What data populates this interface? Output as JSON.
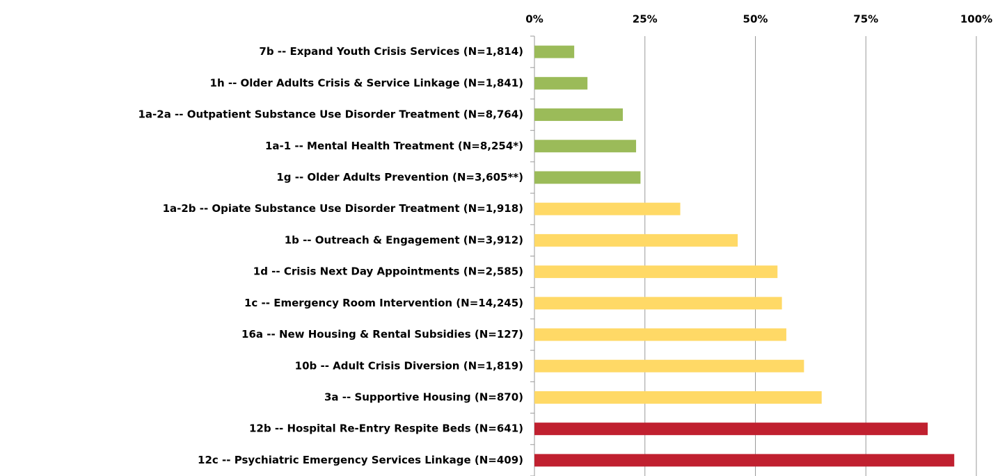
{
  "chart_data": {
    "type": "bar",
    "orientation": "horizontal",
    "categories": [
      "7b -- Expand Youth Crisis Services (N=1,814)",
      "1h -- Older Adults Crisis & Service Linkage (N=1,841)",
      "1a-2a -- Outpatient Substance Use Disorder Treatment (N=8,764)",
      "1a-1 -- Mental Health Treatment (N=8,254*)",
      "1g -- Older Adults Prevention (N=3,605**)",
      "1a-2b -- Opiate Substance Use Disorder Treatment (N=1,918)",
      "1b -- Outreach & Engagement (N=3,912)",
      "1d -- Crisis Next Day Appointments (N=2,585)",
      "1c -- Emergency Room Intervention (N=14,245)",
      "16a -- New Housing & Rental Subsidies (N=127)",
      "10b -- Adult Crisis Diversion (N=1,819)",
      "3a -- Supportive Housing (N=870)",
      "12b -- Hospital Re-Entry Respite Beds (N=641)",
      "12c -- Psychiatric Emergency Services Linkage (N=409)"
    ],
    "values": [
      9,
      12,
      20,
      23,
      24,
      33,
      46,
      55,
      56,
      57,
      61,
      65,
      89,
      95
    ],
    "colors": [
      "#9bbb59",
      "#9bbb59",
      "#9bbb59",
      "#9bbb59",
      "#9bbb59",
      "#ffd966",
      "#ffd966",
      "#ffd966",
      "#ffd966",
      "#ffd966",
      "#ffd966",
      "#ffd966",
      "#c0202f",
      "#c0202f"
    ],
    "xlim": [
      0,
      100
    ],
    "xticks": [
      {
        "value": 0,
        "label": "0%"
      },
      {
        "value": 25,
        "label": "25%"
      },
      {
        "value": 50,
        "label": "50%"
      },
      {
        "value": 75,
        "label": "75%"
      },
      {
        "value": 100,
        "label": "100%"
      }
    ],
    "grid": true
  }
}
